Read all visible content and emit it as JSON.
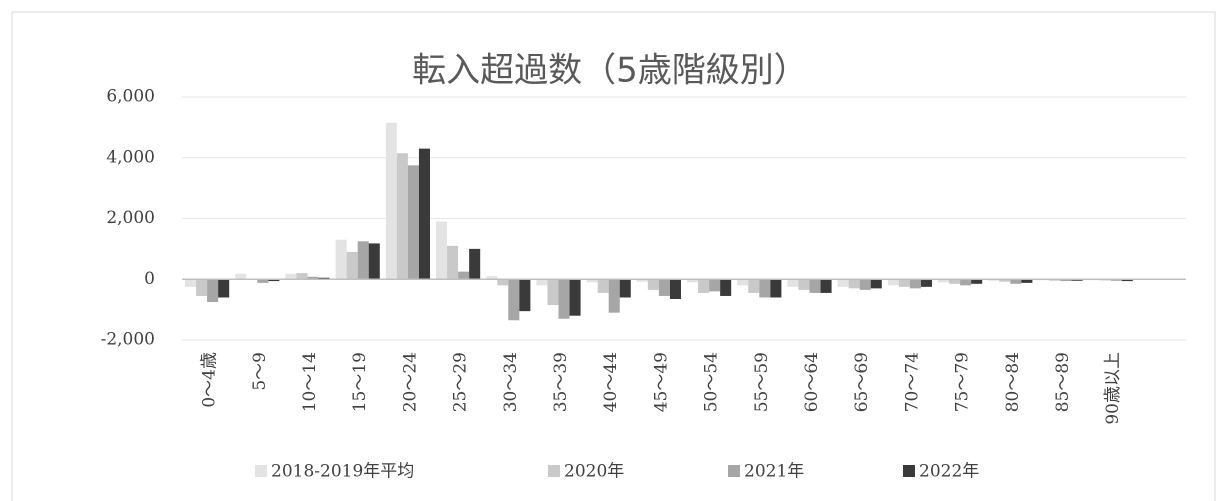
{
  "chart_data": {
    "type": "bar",
    "title": "転入超過数（5歳階級別）",
    "categories": [
      "0〜4歳",
      "5〜9",
      "10〜14",
      "15〜19",
      "20〜24",
      "25〜29",
      "30〜34",
      "35〜39",
      "40〜44",
      "45〜49",
      "50〜54",
      "55〜59",
      "60〜64",
      "65〜69",
      "70〜74",
      "75〜79",
      "80〜84",
      "85〜89",
      "90歳以上",
      null
    ],
    "series": [
      {
        "name": "2018-2019年平均",
        "color": "#e3e3e3",
        "values": [
          -250,
          180,
          180,
          1300,
          5150,
          1900,
          100,
          -200,
          -100,
          -80,
          -100,
          -200,
          -250,
          -250,
          -200,
          -100,
          -50,
          -30,
          -30,
          0
        ]
      },
      {
        "name": "2020年",
        "color": "#c9c9c9",
        "values": [
          -550,
          0,
          200,
          900,
          4150,
          1100,
          -200,
          -850,
          -450,
          -350,
          -450,
          -450,
          -350,
          -300,
          -250,
          -150,
          -80,
          -50,
          -40,
          0
        ]
      },
      {
        "name": "2021年",
        "color": "#a6a6a6",
        "values": [
          -750,
          -120,
          80,
          1250,
          3750,
          250,
          -1350,
          -1300,
          -1100,
          -550,
          -400,
          -600,
          -450,
          -350,
          -300,
          -200,
          -150,
          -60,
          -50,
          0
        ]
      },
      {
        "name": "2022年",
        "color": "#3a3a3a",
        "values": [
          -600,
          -60,
          50,
          1180,
          4300,
          1000,
          -1050,
          -1200,
          -600,
          -650,
          -550,
          -600,
          -450,
          -300,
          -250,
          -150,
          -120,
          -50,
          -60,
          0
        ]
      }
    ],
    "ylim": [
      -2000,
      6000
    ],
    "yticks": [
      {
        "value": -2000,
        "label": "-2,000"
      },
      0,
      {
        "value": 2000,
        "label": "2,000"
      },
      {
        "value": 4000,
        "label": "4,000"
      },
      {
        "value": 6000,
        "label": "6,000"
      }
    ],
    "grid": true
  }
}
